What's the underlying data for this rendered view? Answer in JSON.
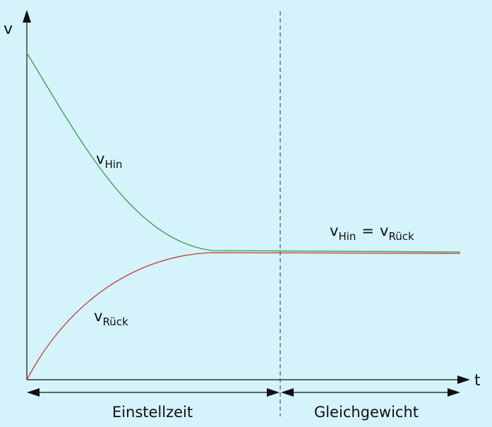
{
  "axes": {
    "y_label": "v",
    "x_label": "t"
  },
  "labels": {
    "forward_base": "v",
    "forward_sub": "Hin",
    "backward_base": "v",
    "backward_sub": "Rück",
    "equal_left_base": "v",
    "equal_left_sub": "Hin",
    "equal_sign": "=",
    "equal_right_base": "v",
    "equal_right_sub": "Rück"
  },
  "regions": {
    "left_label": "Einstellzeit",
    "right_label": "Gleichgewicht"
  },
  "colors": {
    "background": "#d4f3fb",
    "forward_curve": "#3a9a4a",
    "backward_curve": "#c0392b",
    "axis": "#111111"
  }
}
